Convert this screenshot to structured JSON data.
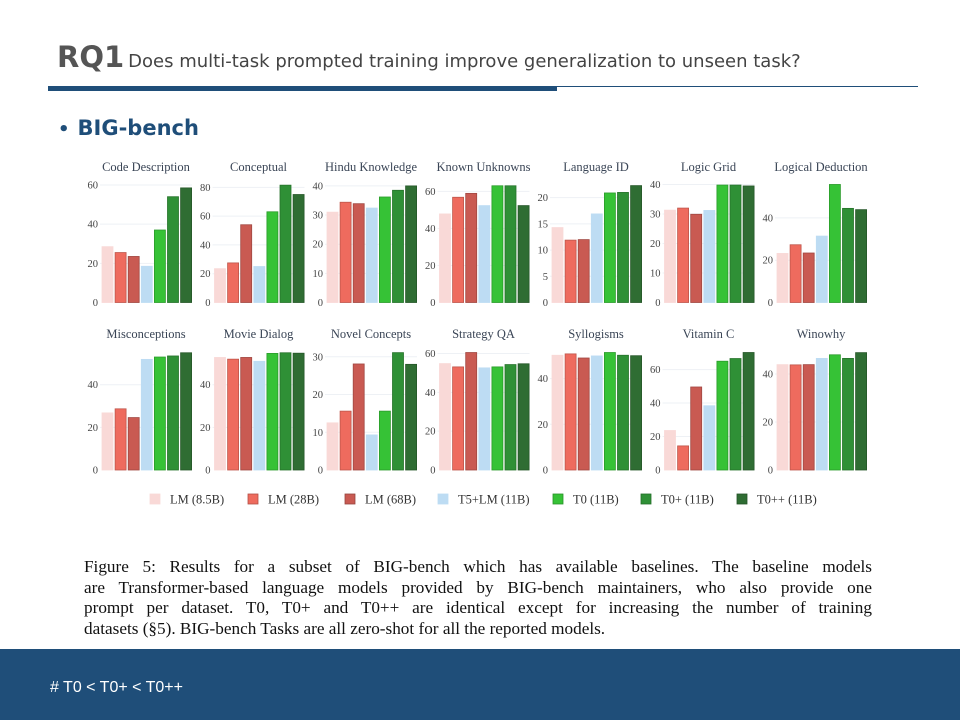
{
  "header": {
    "label": "RQ1",
    "question": "Does multi-task prompted training improve generalization to unseen task?"
  },
  "bullet": "BIG-bench",
  "caption_lines": [
    "Figure 5: Results for a subset of BIG-bench which has available baselines. The baseline models",
    "are Transformer-based language models provided by BIG-bench maintainers, who also provide one",
    "prompt per dataset. T0, T0+ and T0++ are identical except for increasing the number of training",
    "datasets (§5). BIG-bench Tasks are all zero-shot for all the reported models."
  ],
  "footer": "# T0 < T0+ < T0++",
  "chart_data": {
    "type": "bar",
    "legend_position": "bottom",
    "series": [
      {
        "name": "LM (8.5B)",
        "color": "#f9d9d7"
      },
      {
        "name": "LM (28B)",
        "color": "#ee6b5e"
      },
      {
        "name": "LM (68B)",
        "color": "#c95a52"
      },
      {
        "name": "T5+LM (11B)",
        "color": "#bddcf3"
      },
      {
        "name": "T0 (11B)",
        "color": "#36c236"
      },
      {
        "name": "T0+ (11B)",
        "color": "#2f9036"
      },
      {
        "name": "T0++ (11B)",
        "color": "#2f6d33"
      }
    ],
    "panels": [
      {
        "title": "Code Description",
        "ymax": 61,
        "ticks": [
          0,
          20,
          40,
          60
        ],
        "values": [
          28.5,
          25.5,
          23.5,
          18.5,
          37,
          54,
          58.5
        ]
      },
      {
        "title": "Conceptual",
        "ymax": 83,
        "ticks": [
          0,
          20,
          40,
          60,
          80
        ],
        "values": [
          23.5,
          27.5,
          54,
          25,
          63,
          81.5,
          75
        ]
      },
      {
        "title": "Hindu Knowledge",
        "ymax": 41,
        "ticks": [
          0,
          10,
          20,
          30,
          40
        ],
        "values": [
          31,
          34.4,
          33.9,
          32.4,
          36.2,
          38.5,
          40
        ]
      },
      {
        "title": "Known Unknowns",
        "ymax": 64.5,
        "ticks": [
          0,
          20,
          40,
          60
        ],
        "values": [
          47.8,
          56.8,
          58.9,
          52.3,
          63,
          63,
          52.3
        ]
      },
      {
        "title": "Language ID",
        "ymax": 22.8,
        "ticks": [
          0,
          5,
          10,
          15,
          20
        ],
        "values": [
          14.3,
          11.9,
          12,
          16.9,
          20.9,
          21,
          22.3
        ]
      },
      {
        "title": "Logic Grid",
        "ymax": 40.5,
        "ticks": [
          0,
          10,
          20,
          30,
          40
        ],
        "values": [
          31.3,
          32,
          29.9,
          31.2,
          39.8,
          39.8,
          39.5
        ]
      },
      {
        "title": "Logical Deduction",
        "ymax": 56.5,
        "ticks": [
          0,
          20,
          40
        ],
        "values": [
          23.2,
          27.3,
          23.4,
          31.4,
          55.8,
          44.5,
          43.9
        ]
      },
      {
        "title": "Misconceptions",
        "ymax": 56.3,
        "ticks": [
          0,
          20,
          40
        ],
        "values": [
          26.8,
          28.7,
          24.6,
          51.9,
          53,
          53.5,
          55
        ]
      },
      {
        "title": "Movie Dialog",
        "ymax": 56.3,
        "ticks": [
          0,
          20,
          40
        ],
        "values": [
          52.8,
          52,
          52.8,
          51,
          54.7,
          55,
          54.8
        ]
      },
      {
        "title": "Novel Concepts",
        "ymax": 31.8,
        "ticks": [
          0,
          10,
          20,
          30
        ],
        "values": [
          12.5,
          15.6,
          28.1,
          9.3,
          15.6,
          31.1,
          28
        ]
      },
      {
        "title": "Strategy QA",
        "ymax": 61.8,
        "ticks": [
          0,
          20,
          40,
          60
        ],
        "values": [
          54.8,
          53.1,
          60.5,
          52.6,
          53.1,
          54.3,
          54.7
        ]
      },
      {
        "title": "Syllogisms",
        "ymax": 52.5,
        "ticks": [
          0,
          20,
          40
        ],
        "values": [
          50.2,
          50.8,
          49,
          49.9,
          51.4,
          50.2,
          50
        ]
      },
      {
        "title": "Vitamin C",
        "ymax": 71.7,
        "ticks": [
          0,
          20,
          40,
          60
        ],
        "values": [
          23.6,
          14.4,
          49.6,
          38.4,
          65,
          66.6,
          70.2
        ]
      },
      {
        "title": "Winowhy",
        "ymax": 50,
        "ticks": [
          0,
          20,
          40
        ],
        "values": [
          43.9,
          43.8,
          43.9,
          46.5,
          48,
          46.5,
          48.9
        ]
      }
    ]
  }
}
